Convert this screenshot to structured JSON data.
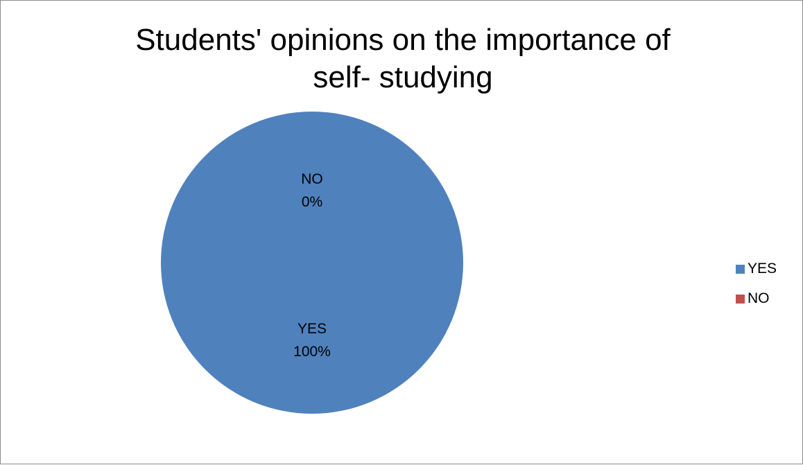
{
  "chart_data": {
    "type": "pie",
    "title": "Students' opinions on the importance of self- studying",
    "title_lines": [
      "Students' opinions on the importance of",
      "self- studying"
    ],
    "categories": [
      "YES",
      "NO"
    ],
    "values": [
      100,
      0
    ],
    "data_labels": [
      {
        "category": "NO",
        "percent": "0%"
      },
      {
        "category": "YES",
        "percent": "100%"
      }
    ],
    "colors": {
      "YES": "#4f81bd",
      "NO": "#c0504d"
    },
    "legend_position": "right",
    "legend": [
      {
        "label": "YES",
        "color": "#4f81bd"
      },
      {
        "label": "NO",
        "color": "#c0504d"
      }
    ]
  }
}
